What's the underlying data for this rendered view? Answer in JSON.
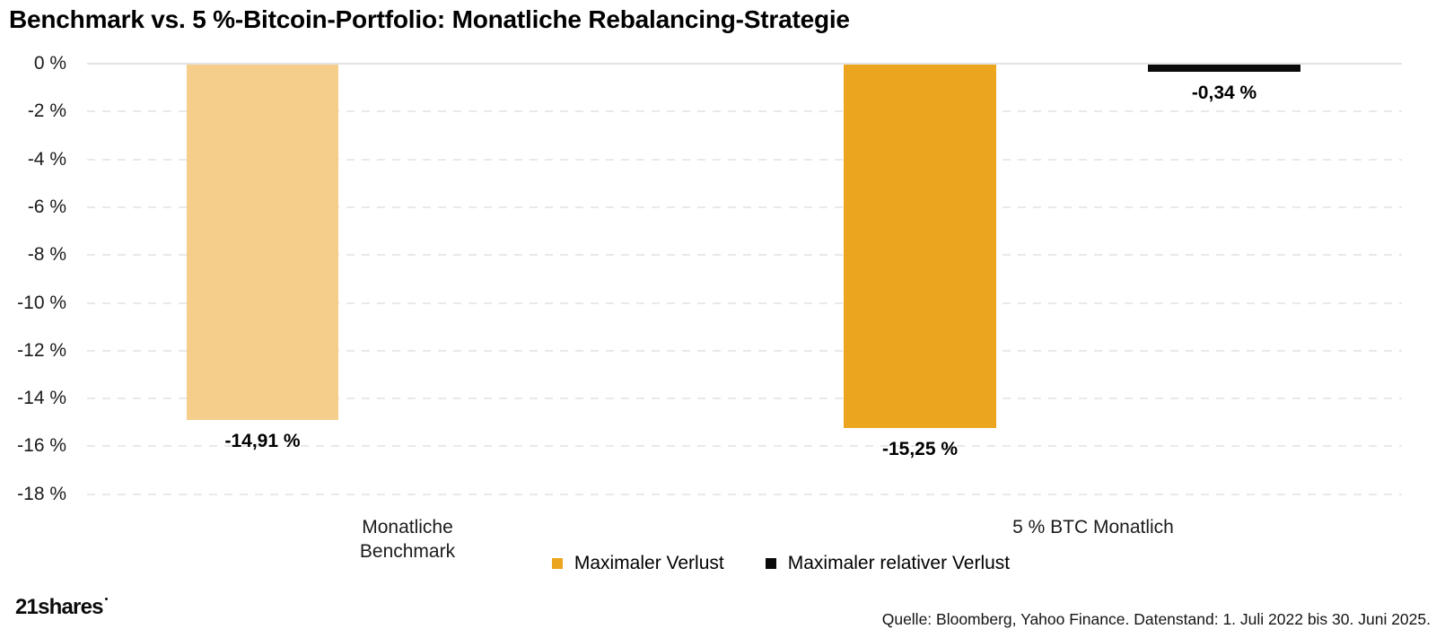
{
  "title": "Benchmark vs. 5 %-Bitcoin-Portfolio: Monatliche Rebalancing-Strategie",
  "chart_data": {
    "type": "bar",
    "categories": [
      "Monatliche Benchmark",
      "5 % BTC Monatlich"
    ],
    "series": [
      {
        "name": "Maximaler Verlust",
        "values": [
          -14.91,
          -15.25
        ]
      },
      {
        "name": "Maximaler relativer Verlust",
        "values": [
          null,
          -0.34
        ]
      }
    ],
    "bars": [
      {
        "category": "Monatliche Benchmark",
        "series": "Maximaler Verlust",
        "value": -14.91,
        "label": "-14,91 %",
        "color": "#F6CE8C"
      },
      {
        "category": "5 % BTC Monatlich",
        "series": "Maximaler Verlust",
        "value": -15.25,
        "label": "-15,25 %",
        "color": "#ECA51F"
      },
      {
        "category": "5 % BTC Monatlich",
        "series": "Maximaler relativer Verlust",
        "value": -0.34,
        "label": "-0,34 %",
        "color": "#0A0A0A"
      }
    ],
    "yticks": [
      "0 %",
      "-2 %",
      "-4 %",
      "-6 %",
      "-8 %",
      "-10 %",
      "-12 %",
      "-14 %",
      "-16 %",
      "-18 %"
    ],
    "ylim": [
      -18,
      0
    ],
    "ytick_step": 2,
    "grid": "horizontal-dashed",
    "legend_position": "bottom-center"
  },
  "legend": {
    "items": [
      {
        "label": "Maximaler Verlust",
        "color": "#ECA51F"
      },
      {
        "label": "Maximaler relativer Verlust",
        "color": "#0A0A0A"
      }
    ]
  },
  "footer": {
    "logo_text": "21shares",
    "source": "Quelle: Bloomberg, Yahoo Finance. Datenstand: 1. Juli 2022 bis 30. Juni 2025."
  },
  "colors": {
    "benchmark_bar": "#F6CE8C",
    "btc_bar": "#ECA51F",
    "relative_bar": "#0A0A0A",
    "gridline": "#E9E9E9",
    "zero_line": "#E3E3E3",
    "background": "#FFFFFF",
    "text": "#1B1B1B"
  }
}
